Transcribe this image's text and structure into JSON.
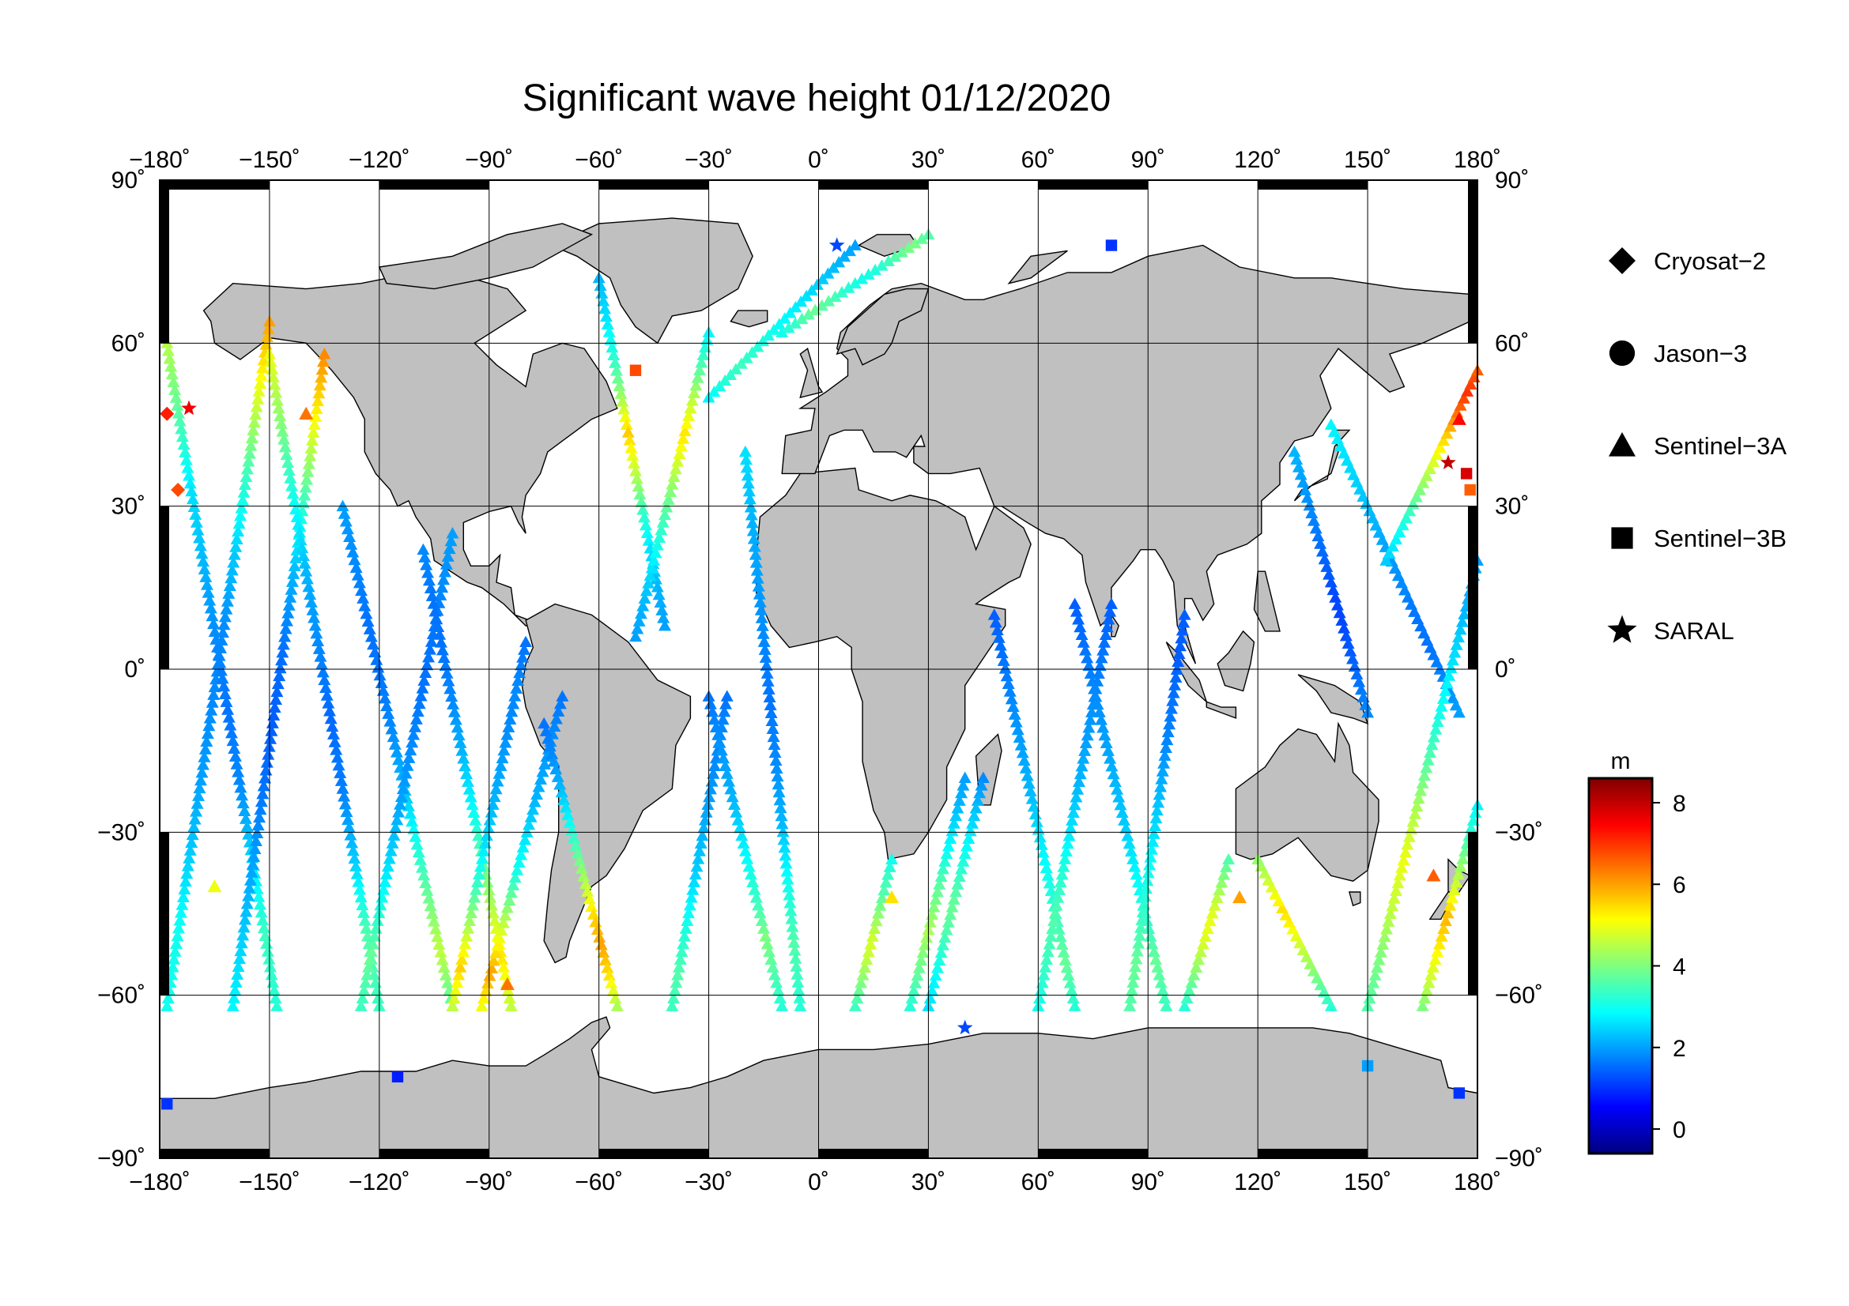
{
  "title": "Significant wave height 01/12/2020",
  "map": {
    "projection": "equirectangular",
    "lon_range": [
      -180,
      180
    ],
    "lat_range": [
      -90,
      90
    ],
    "lon_ticks": [
      -180,
      -150,
      -120,
      -90,
      -60,
      -30,
      0,
      30,
      60,
      90,
      120,
      150,
      180
    ],
    "lat_ticks": [
      -90,
      -60,
      -30,
      0,
      30,
      60,
      90
    ],
    "lon_tick_labels": [
      "−180˚",
      "−150˚",
      "−120˚",
      "−90˚",
      "−60˚",
      "−30˚",
      "0˚",
      "30˚",
      "60˚",
      "90˚",
      "120˚",
      "150˚",
      "180˚"
    ],
    "lat_tick_labels": [
      "−90˚",
      "−60˚",
      "−30˚",
      "0˚",
      "30˚",
      "60˚",
      "90˚"
    ],
    "land_color": "#c0c0c0",
    "ocean_color": "#ffffff",
    "grid": true
  },
  "legend": {
    "items": [
      {
        "label": "Cryosat−2",
        "marker": "diamond"
      },
      {
        "label": "Jason−3",
        "marker": "circle"
      },
      {
        "label": "Sentinel−3A",
        "marker": "triangle"
      },
      {
        "label": "Sentinel−3B",
        "marker": "square"
      },
      {
        "label": "SARAL",
        "marker": "star"
      }
    ]
  },
  "colorbar": {
    "unit": "m",
    "min": -0.6,
    "max": 8.6,
    "ticks": [
      0,
      2,
      4,
      6,
      8
    ],
    "tick_labels": [
      "0",
      "2",
      "4",
      "6",
      "8"
    ],
    "colormap": [
      "#00007f",
      "#0000ff",
      "#007fff",
      "#00ffff",
      "#7fff7f",
      "#ffff00",
      "#ff7f00",
      "#ff0000",
      "#7f0000"
    ]
  },
  "chart_data": {
    "type": "scatter",
    "title": "Significant wave height 01/12/2020",
    "xlabel": "",
    "ylabel": "",
    "xlim": [
      -180,
      180
    ],
    "ylim": [
      -90,
      90
    ],
    "color_variable": "significant wave height (m)",
    "series": [
      {
        "name": "Cryosat−2",
        "marker": "diamond"
      },
      {
        "name": "Jason−3",
        "marker": "circle"
      },
      {
        "name": "Sentinel−3A",
        "marker": "triangle"
      },
      {
        "name": "Sentinel−3B",
        "marker": "square"
      },
      {
        "name": "SARAL",
        "marker": "star"
      }
    ],
    "tracks": [
      {
        "lon0": -178,
        "lat0": -62,
        "lon1": -150,
        "lat1": 64,
        "h": [
          3,
          3,
          2.4,
          2,
          1.8,
          1.8,
          2.4,
          3.4,
          4.8,
          6
        ]
      },
      {
        "lon0": -178,
        "lat0": 60,
        "lon1": -148,
        "lat1": -62,
        "h": [
          4.5,
          3.6,
          2.6,
          2.2,
          1.8,
          1.6,
          1.8,
          2.5,
          3.4,
          3.2
        ]
      },
      {
        "lon0": -160,
        "lat0": -62,
        "lon1": -135,
        "lat1": 58,
        "h": [
          2.8,
          2.4,
          2,
          1.6,
          1.4,
          1.6,
          2.2,
          3.4,
          5,
          6.2
        ]
      },
      {
        "lon0": -150,
        "lat0": 58,
        "lon1": -120,
        "lat1": -62,
        "h": [
          5,
          4,
          3,
          2.2,
          1.8,
          1.5,
          1.7,
          2.4,
          3.6,
          3.4
        ]
      },
      {
        "lon0": -130,
        "lat0": 30,
        "lon1": -100,
        "lat1": -62,
        "h": [
          2,
          1.8,
          1.6,
          1.6,
          1.8,
          2.2,
          3,
          3.8,
          4.6,
          3.6
        ]
      },
      {
        "lon0": -125,
        "lat0": -62,
        "lon1": -100,
        "lat1": 25,
        "h": [
          3.4,
          3.8,
          3,
          2.4,
          2,
          1.8,
          1.6,
          1.6,
          1.8,
          2
        ]
      },
      {
        "lon0": -108,
        "lat0": 22,
        "lon1": -84,
        "lat1": -62,
        "h": [
          1.8,
          1.6,
          1.6,
          1.8,
          2.2,
          2.8,
          3.6,
          4.4,
          5.4,
          4.6
        ]
      },
      {
        "lon0": -100,
        "lat0": -62,
        "lon1": -80,
        "lat1": 5,
        "h": [
          4.6,
          5.6,
          4.4,
          3.4,
          2.6,
          2.2,
          2,
          1.8,
          1.8,
          1.6
        ]
      },
      {
        "lon0": -92,
        "lat0": -62,
        "lon1": -70,
        "lat1": -5,
        "h": [
          5,
          6,
          5,
          4,
          3,
          2.6,
          2.2,
          2,
          1.8,
          1.6
        ]
      },
      {
        "lon0": -75,
        "lat0": -10,
        "lon1": -55,
        "lat1": -62,
        "h": [
          1.6,
          1.8,
          2.2,
          2.8,
          3.6,
          4.4,
          5.4,
          6,
          5.4,
          4.4
        ]
      },
      {
        "lon0": -60,
        "lat0": 72,
        "lon1": -42,
        "lat1": 8,
        "h": [
          2.2,
          2.6,
          3.2,
          4.2,
          5.6,
          4.6,
          3.4,
          2.6,
          2.2,
          2
        ]
      },
      {
        "lon0": -50,
        "lat0": 6,
        "lon1": -30,
        "lat1": 62,
        "h": [
          2,
          2.2,
          2.6,
          3.2,
          3.8,
          4.6,
          5.4,
          4.6,
          3.6,
          2.8
        ]
      },
      {
        "lon0": -40,
        "lat0": -62,
        "lon1": -25,
        "lat1": -5,
        "h": [
          3.4,
          3.6,
          3.2,
          2.8,
          2.4,
          2.2,
          2,
          1.8,
          1.8,
          1.6
        ]
      },
      {
        "lon0": -30,
        "lat0": -5,
        "lon1": -10,
        "lat1": -62,
        "h": [
          1.6,
          1.8,
          2,
          2.2,
          2.6,
          3,
          3.4,
          4,
          3.6,
          3.2
        ]
      },
      {
        "lon0": -20,
        "lat0": 40,
        "lon1": -5,
        "lat1": -62,
        "h": [
          2.6,
          2.2,
          2,
          1.8,
          1.6,
          1.8,
          2.2,
          3,
          3.6,
          3.2
        ]
      },
      {
        "lon0": -30,
        "lat0": 50,
        "lon1": 10,
        "lat1": 78,
        "h": [
          2.8,
          3.2,
          3.4,
          3.2,
          3,
          2.8,
          2.6,
          2.4,
          2.2,
          2
        ]
      },
      {
        "lon0": -10,
        "lat0": 62,
        "lon1": 30,
        "lat1": 80,
        "h": [
          3,
          3.4,
          3.8,
          3.6,
          3.2,
          3,
          3.2,
          3.6,
          4,
          3.6
        ]
      },
      {
        "lon0": 10,
        "lat0": -62,
        "lon1": 20,
        "lat1": -35,
        "h": [
          3.4,
          3.8,
          4.2,
          4.6,
          4.8,
          4.4,
          4,
          3.6,
          3.4,
          3
        ]
      },
      {
        "lon0": 25,
        "lat0": -62,
        "lon1": 40,
        "lat1": -20,
        "h": [
          3.2,
          3.6,
          4,
          4.4,
          4,
          3.6,
          3,
          2.6,
          2.2,
          2
        ]
      },
      {
        "lon0": 45,
        "lat0": -20,
        "lon1": 30,
        "lat1": -62,
        "h": [
          1.8,
          2.2,
          2.6,
          3,
          3.4,
          3.8,
          3.6,
          3.2,
          2.8,
          2.6
        ]
      },
      {
        "lon0": 48,
        "lat0": 10,
        "lon1": 70,
        "lat1": -62,
        "h": [
          1.4,
          1.6,
          1.8,
          2,
          2.2,
          2.6,
          3,
          3.4,
          3.8,
          3.2
        ]
      },
      {
        "lon0": 60,
        "lat0": -62,
        "lon1": 80,
        "lat1": 12,
        "h": [
          3,
          3.4,
          3.6,
          3.2,
          2.6,
          2.2,
          2,
          1.8,
          1.6,
          1.4
        ]
      },
      {
        "lon0": 70,
        "lat0": 12,
        "lon1": 95,
        "lat1": -62,
        "h": [
          1.4,
          1.6,
          1.8,
          2,
          2.2,
          2.4,
          2.8,
          3.2,
          3.8,
          3.4
        ]
      },
      {
        "lon0": 85,
        "lat0": -62,
        "lon1": 100,
        "lat1": 10,
        "h": [
          3.6,
          3.8,
          3.4,
          3,
          2.6,
          2.2,
          1.8,
          1.6,
          1.4,
          1.4
        ]
      },
      {
        "lon0": 100,
        "lat0": -62,
        "lon1": 112,
        "lat1": -35,
        "h": [
          3.2,
          3.6,
          4,
          4.4,
          4.8,
          5,
          4.8,
          4.4,
          4,
          3.6
        ]
      },
      {
        "lon0": 140,
        "lat0": -62,
        "lon1": 120,
        "lat1": -35,
        "h": [
          3.2,
          3.6,
          4,
          4.4,
          4.8,
          5.2,
          5.4,
          5,
          4.6,
          4.2
        ]
      },
      {
        "lon0": 130,
        "lat0": 40,
        "lon1": 150,
        "lat1": -8,
        "h": [
          2.2,
          2,
          1.8,
          1.6,
          1.4,
          1.2,
          1.2,
          1.4,
          1.6,
          1.8
        ]
      },
      {
        "lon0": 140,
        "lat0": 45,
        "lon1": 175,
        "lat1": -8,
        "h": [
          2.8,
          2.6,
          2.4,
          2.2,
          2,
          1.8,
          1.6,
          1.6,
          1.8,
          2
        ]
      },
      {
        "lon0": 150,
        "lat0": -62,
        "lon1": 180,
        "lat1": 20,
        "h": [
          3.6,
          4,
          4.6,
          5,
          4.4,
          3.6,
          3,
          2.6,
          2.2,
          2
        ]
      },
      {
        "lon0": 155,
        "lat0": 20,
        "lon1": 180,
        "lat1": 55,
        "h": [
          2.4,
          2.8,
          3.2,
          3.8,
          4.4,
          5,
          5.6,
          6.4,
          7,
          6.6
        ]
      },
      {
        "lon0": 165,
        "lat0": -62,
        "lon1": 180,
        "lat1": -25,
        "h": [
          4,
          4.6,
          5,
          5.4,
          5.8,
          5,
          4.4,
          3.8,
          3.2,
          2.8
        ]
      }
    ],
    "notable_points": [
      {
        "lon": -178,
        "lat": 47,
        "h": 7.2,
        "marker": "diamond"
      },
      {
        "lon": -172,
        "lat": 48,
        "h": 7.6,
        "marker": "star"
      },
      {
        "lon": -175,
        "lat": 33,
        "h": 6.8,
        "marker": "diamond"
      },
      {
        "lon": -140,
        "lat": 47,
        "h": 6.4,
        "marker": "triangle"
      },
      {
        "lon": 175,
        "lat": 46,
        "h": 7.4,
        "marker": "triangle"
      },
      {
        "lon": 177,
        "lat": 36,
        "h": 7.8,
        "marker": "square"
      },
      {
        "lon": 178,
        "lat": 33,
        "h": 6.6,
        "marker": "square"
      },
      {
        "lon": 172,
        "lat": 38,
        "h": 8.0,
        "marker": "star"
      },
      {
        "lon": -85,
        "lat": -58,
        "h": 6.4,
        "marker": "triangle"
      },
      {
        "lon": -50,
        "lat": 55,
        "h": 6.8,
        "marker": "square"
      },
      {
        "lon": 115,
        "lat": -42,
        "h": 6.0,
        "marker": "triangle"
      },
      {
        "lon": 168,
        "lat": -38,
        "h": 6.6,
        "marker": "triangle"
      },
      {
        "lon": -165,
        "lat": -40,
        "h": 5.0,
        "marker": "triangle"
      },
      {
        "lon": 20,
        "lat": -42,
        "h": 5.4,
        "marker": "triangle"
      },
      {
        "lon": 40,
        "lat": -66,
        "h": 1.2,
        "marker": "star"
      },
      {
        "lon": -178,
        "lat": -80,
        "h": 1.0,
        "marker": "square"
      },
      {
        "lon": -115,
        "lat": -75,
        "h": 0.8,
        "marker": "square"
      },
      {
        "lon": 175,
        "lat": -78,
        "h": 1.0,
        "marker": "square"
      },
      {
        "lon": 150,
        "lat": -73,
        "h": 2.0,
        "marker": "square"
      },
      {
        "lon": 80,
        "lat": 78,
        "h": 1.0,
        "marker": "square"
      },
      {
        "lon": 5,
        "lat": 78,
        "h": 1.2,
        "marker": "star"
      }
    ]
  }
}
